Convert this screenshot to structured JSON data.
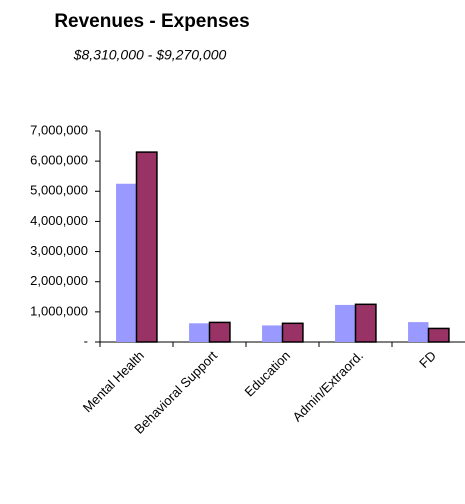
{
  "chart_data": {
    "type": "bar",
    "title": "Revenues - Expenses",
    "subtitle": "$8,310,000 - $9,270,000",
    "categories": [
      "Mental Health",
      "Behavioral Support",
      "Education",
      "Admin/Extraord.",
      "FD"
    ],
    "series": [
      {
        "color": "#9999ff",
        "values": [
          5250000,
          620000,
          550000,
          1230000,
          660000
        ]
      },
      {
        "color": "#993366",
        "values": [
          6300000,
          650000,
          620000,
          1250000,
          450000
        ]
      }
    ],
    "ylim": [
      0,
      7000000
    ],
    "yticks": [
      {
        "value": 0,
        "label": "-"
      },
      {
        "value": 1000000,
        "label": "1,000,000"
      },
      {
        "value": 2000000,
        "label": "2,000,000"
      },
      {
        "value": 3000000,
        "label": "3,000,000"
      },
      {
        "value": 4000000,
        "label": "4,000,000"
      },
      {
        "value": 5000000,
        "label": "5,000,000"
      },
      {
        "value": 6000000,
        "label": "6,000,000"
      },
      {
        "value": 7000000,
        "label": "7,000,000"
      }
    ],
    "grid": false
  }
}
